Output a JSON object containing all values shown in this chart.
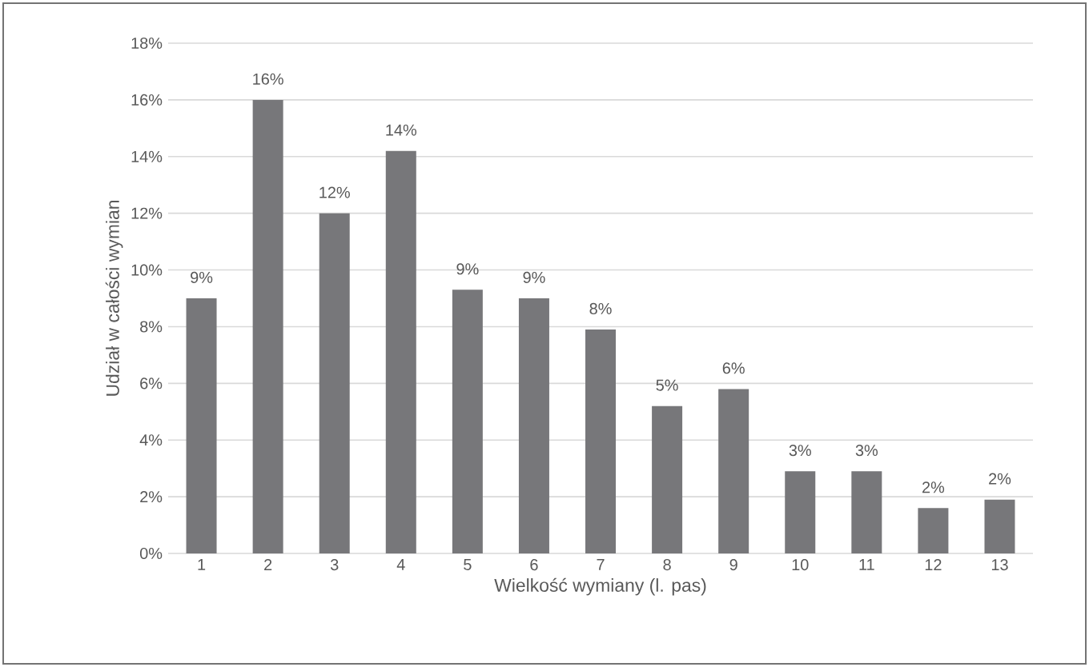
{
  "chart_data": {
    "type": "bar",
    "xlabel": "Wielkość wymiany (l. pas)",
    "ylabel": "Udział w całości wymian",
    "categories": [
      "1",
      "2",
      "3",
      "4",
      "5",
      "6",
      "7",
      "8",
      "9",
      "10",
      "11",
      "12",
      "13"
    ],
    "values": [
      9.0,
      16.0,
      12.0,
      14.2,
      9.3,
      9.0,
      7.9,
      5.2,
      5.8,
      2.9,
      2.9,
      1.6,
      1.9
    ],
    "value_labels": [
      "9%",
      "16%",
      "12%",
      "14%",
      "9%",
      "9%",
      "8%",
      "5%",
      "6%",
      "3%",
      "3%",
      "2%",
      "2%"
    ],
    "color": "#77777a",
    "ylim": [
      0,
      18
    ],
    "yticks": [
      {
        "value": 0,
        "label": "0%"
      },
      {
        "value": 2,
        "label": "2%"
      },
      {
        "value": 4,
        "label": "4%"
      },
      {
        "value": 6,
        "label": "6%"
      },
      {
        "value": 8,
        "label": "8%"
      },
      {
        "value": 10,
        "label": "10%"
      },
      {
        "value": 12,
        "label": "12%"
      },
      {
        "value": 14,
        "label": "14%"
      },
      {
        "value": 16,
        "label": "16%"
      },
      {
        "value": 18,
        "label": "18%"
      }
    ],
    "grid": "y"
  }
}
